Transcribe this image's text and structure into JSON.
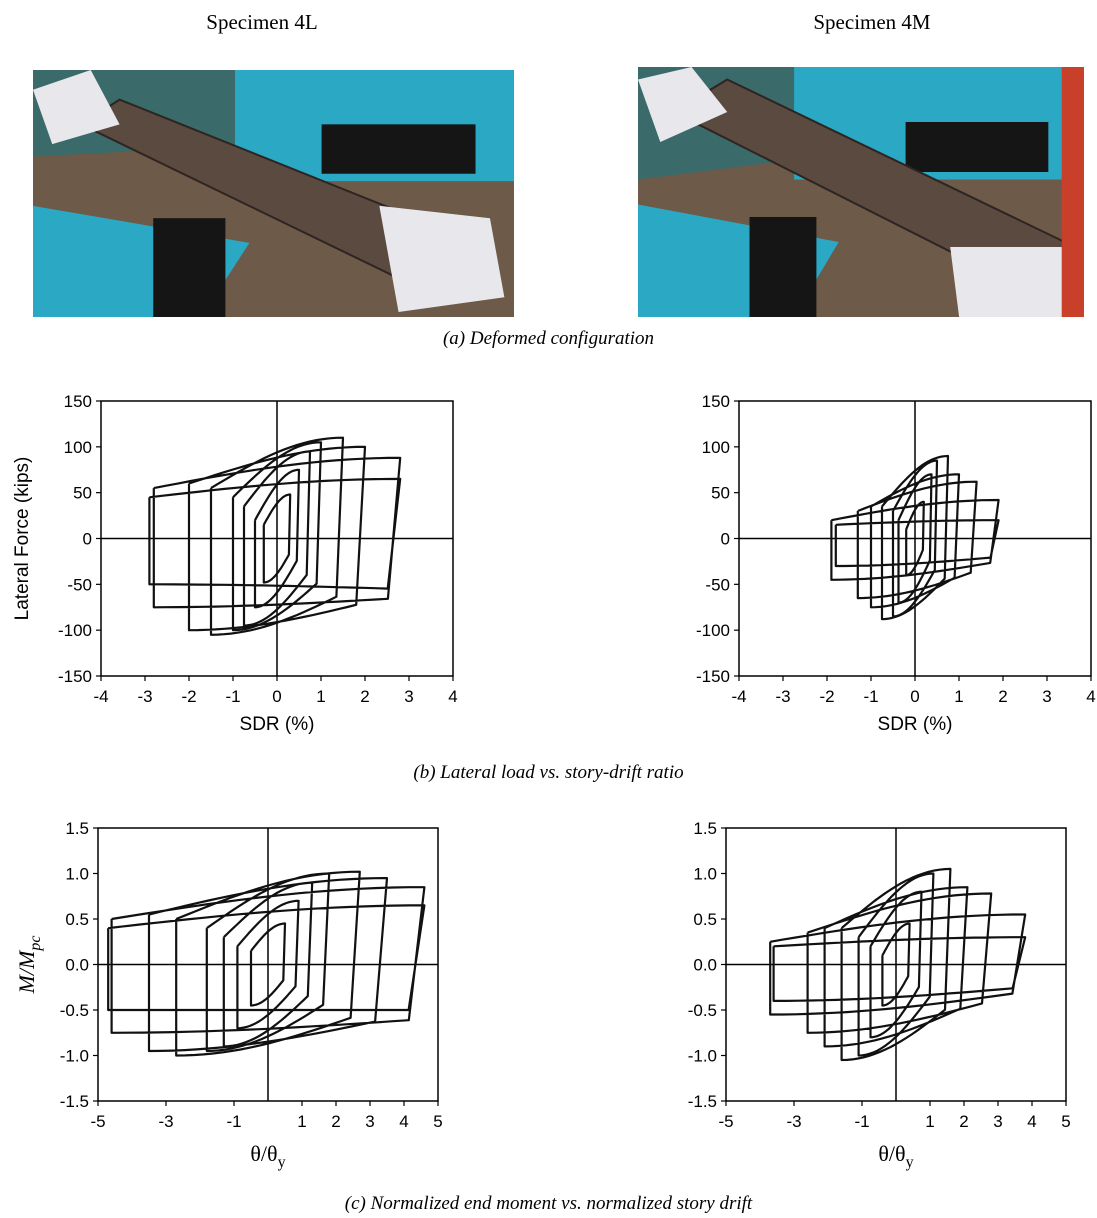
{
  "headers": {
    "left": "Specimen 4L",
    "right": "Specimen 4M"
  },
  "captions": {
    "a": "(a)  Deformed configuration",
    "b": "(b)  Lateral load vs. story-drift ratio",
    "c": "(c)  Normalized end moment vs. normalized story drift"
  },
  "photos": [
    {
      "specimen": "4L",
      "palette": {
        "machine": "#2aa8c4",
        "floor": "#6e5a48",
        "beam": "#5a4a40",
        "wrap": "#e8e8ec",
        "dark": "#151515"
      }
    },
    {
      "specimen": "4M",
      "palette": {
        "machine": "#2aa8c4",
        "floor": "#6e5a48",
        "beam": "#5a4a40",
        "wrap": "#e8e8ec",
        "dark": "#151515",
        "red": "#c8402a"
      }
    }
  ],
  "chart_data": [
    {
      "id": "b1",
      "type": "line",
      "specimen": "4L",
      "panel": "b",
      "xlabel": "SDR (%)",
      "ylabel": "Lateral Force (kips)",
      "xlim": [
        -4,
        4
      ],
      "ylim": [
        -150,
        150
      ],
      "xticks": [
        "-4",
        "-3",
        "-2",
        "-1",
        "0",
        "1",
        "2",
        "3",
        "4"
      ],
      "yticks": [
        "150",
        "100",
        "50",
        "0",
        "-50",
        "-100",
        "-150"
      ],
      "grid": false,
      "crosshair_at_zero": true,
      "loops": [
        {
          "xmax": 0.3,
          "xmin": -0.3,
          "ypos": 48,
          "yneg": -48,
          "yrev_pos": -15,
          "yrev_neg": 15
        },
        {
          "xmax": 0.5,
          "xmin": -0.5,
          "ypos": 75,
          "yneg": -75,
          "yrev_pos": -20,
          "yrev_neg": 20
        },
        {
          "xmax": 0.75,
          "xmin": -0.75,
          "ypos": 95,
          "yneg": -95,
          "yrev_pos": -35,
          "yrev_neg": 35
        },
        {
          "xmax": 1.0,
          "xmin": -1.0,
          "ypos": 105,
          "yneg": -100,
          "yrev_pos": -45,
          "yrev_neg": 45
        },
        {
          "xmax": 1.5,
          "xmin": -1.5,
          "ypos": 110,
          "yneg": -105,
          "yrev_pos": -60,
          "yrev_neg": 55
        },
        {
          "xmax": 2.0,
          "xmin": -2.0,
          "ypos": 100,
          "yneg": -100,
          "yrev_pos": -70,
          "yrev_neg": 60
        },
        {
          "xmax": 2.8,
          "xmin": -2.8,
          "ypos": 88,
          "yneg": -75,
          "yrev_pos": -65,
          "yrev_neg": 55
        },
        {
          "xmax": 2.8,
          "xmin": -2.9,
          "ypos": 65,
          "yneg": -50,
          "yrev_pos": -55,
          "yrev_neg": 45
        }
      ],
      "peaks": {
        "max": 110,
        "min": -120
      }
    },
    {
      "id": "b2",
      "type": "line",
      "specimen": "4M",
      "panel": "b",
      "xlabel": "SDR (%)",
      "ylabel": "",
      "xlim": [
        -4,
        4
      ],
      "ylim": [
        -150,
        150
      ],
      "xticks": [
        "-4",
        "-3",
        "-2",
        "-1",
        "0",
        "1",
        "2",
        "3",
        "4"
      ],
      "yticks": [
        "150",
        "100",
        "50",
        "0",
        "-50",
        "-100",
        "-150"
      ],
      "grid": false,
      "crosshair_at_zero": true,
      "loops": [
        {
          "xmax": 0.2,
          "xmin": -0.2,
          "ypos": 40,
          "yneg": -40,
          "yrev_pos": -10,
          "yrev_neg": 10
        },
        {
          "xmax": 0.375,
          "xmin": -0.375,
          "ypos": 70,
          "yneg": -70,
          "yrev_pos": -20,
          "yrev_neg": 20
        },
        {
          "xmax": 0.5,
          "xmin": -0.5,
          "ypos": 85,
          "yneg": -85,
          "yrev_pos": -30,
          "yrev_neg": 30
        },
        {
          "xmax": 0.75,
          "xmin": -0.75,
          "ypos": 90,
          "yneg": -88,
          "yrev_pos": -40,
          "yrev_neg": 35
        },
        {
          "xmax": 1.0,
          "xmin": -1.0,
          "ypos": 70,
          "yneg": -75,
          "yrev_pos": -40,
          "yrev_neg": 35
        },
        {
          "xmax": 1.4,
          "xmin": -1.3,
          "ypos": 62,
          "yneg": -65,
          "yrev_pos": -35,
          "yrev_neg": 30
        },
        {
          "xmax": 1.9,
          "xmin": -1.9,
          "ypos": 42,
          "yneg": -45,
          "yrev_pos": -25,
          "yrev_neg": 20
        },
        {
          "xmax": 1.9,
          "xmin": -1.8,
          "ypos": 20,
          "yneg": -30,
          "yrev_pos": -20,
          "yrev_neg": 15
        }
      ],
      "peaks": {
        "max": 95,
        "min": -90
      }
    },
    {
      "id": "c1",
      "type": "line",
      "specimen": "4L",
      "panel": "c",
      "xlabel": "θ/θy",
      "xlabel_main": "θ/θ",
      "xlabel_sub": "y",
      "ylabel": "M/Mpc",
      "ylabel_main": "M/M",
      "ylabel_sub": "pc",
      "xlim": [
        -5,
        5
      ],
      "ylim": [
        -1.5,
        1.5
      ],
      "xticks": [
        "-5",
        "-3",
        "-1",
        "1",
        "2",
        "3",
        "4",
        "5"
      ],
      "xtick_values": [
        -5,
        -3,
        -1,
        1,
        2,
        3,
        4,
        5
      ],
      "yticks": [
        "1.5",
        "1.0",
        "0.5",
        "0.0",
        "-0.5",
        "-1.0",
        "-1.5"
      ],
      "grid": false,
      "crosshair_at_zero": true,
      "loops": [
        {
          "xmax": 0.5,
          "xmin": -0.5,
          "ypos": 0.45,
          "yneg": -0.45,
          "yrev_pos": -0.15,
          "yrev_neg": 0.15
        },
        {
          "xmax": 0.9,
          "xmin": -0.9,
          "ypos": 0.7,
          "yneg": -0.7,
          "yrev_pos": -0.2,
          "yrev_neg": 0.2
        },
        {
          "xmax": 1.3,
          "xmin": -1.3,
          "ypos": 0.9,
          "yneg": -0.9,
          "yrev_pos": -0.3,
          "yrev_neg": 0.3
        },
        {
          "xmax": 1.8,
          "xmin": -1.8,
          "ypos": 1.0,
          "yneg": -0.95,
          "yrev_pos": -0.4,
          "yrev_neg": 0.4
        },
        {
          "xmax": 2.7,
          "xmin": -2.7,
          "ypos": 1.02,
          "yneg": -1.0,
          "yrev_pos": -0.55,
          "yrev_neg": 0.5
        },
        {
          "xmax": 3.5,
          "xmin": -3.5,
          "ypos": 0.95,
          "yneg": -0.95,
          "yrev_pos": -0.6,
          "yrev_neg": 0.55
        },
        {
          "xmax": 4.6,
          "xmin": -4.6,
          "ypos": 0.85,
          "yneg": -0.75,
          "yrev_pos": -0.6,
          "yrev_neg": 0.5
        },
        {
          "xmax": 4.6,
          "xmin": -4.7,
          "ypos": 0.65,
          "yneg": -0.5,
          "yrev_pos": -0.5,
          "yrev_neg": 0.4
        }
      ],
      "peaks": {
        "max": 1.05,
        "min": -1.1
      }
    },
    {
      "id": "c2",
      "type": "line",
      "specimen": "4M",
      "panel": "c",
      "xlabel": "θ/θy",
      "xlabel_main": "θ/θ",
      "xlabel_sub": "y",
      "ylabel": "",
      "xlim": [
        -5,
        5
      ],
      "ylim": [
        -1.5,
        1.5
      ],
      "xticks": [
        "-5",
        "-3",
        "-1",
        "1",
        "2",
        "3",
        "4",
        "5"
      ],
      "xtick_values": [
        -5,
        -3,
        -1,
        1,
        2,
        3,
        4,
        5
      ],
      "yticks": [
        "1.5",
        "1.0",
        "0.5",
        "0.0",
        "-0.5",
        "-1.0",
        "-1.5"
      ],
      "grid": false,
      "crosshair_at_zero": true,
      "loops": [
        {
          "xmax": 0.4,
          "xmin": -0.4,
          "ypos": 0.45,
          "yneg": -0.45,
          "yrev_pos": -0.1,
          "yrev_neg": 0.1
        },
        {
          "xmax": 0.75,
          "xmin": -0.75,
          "ypos": 0.8,
          "yneg": -0.8,
          "yrev_pos": -0.2,
          "yrev_neg": 0.2
        },
        {
          "xmax": 1.1,
          "xmin": -1.1,
          "ypos": 1.0,
          "yneg": -1.0,
          "yrev_pos": -0.3,
          "yrev_neg": 0.3
        },
        {
          "xmax": 1.6,
          "xmin": -1.6,
          "ypos": 1.05,
          "yneg": -1.05,
          "yrev_pos": -0.45,
          "yrev_neg": 0.4
        },
        {
          "xmax": 2.1,
          "xmin": -2.1,
          "ypos": 0.85,
          "yneg": -0.9,
          "yrev_pos": -0.45,
          "yrev_neg": 0.4
        },
        {
          "xmax": 2.8,
          "xmin": -2.6,
          "ypos": 0.78,
          "yneg": -0.75,
          "yrev_pos": -0.4,
          "yrev_neg": 0.35
        },
        {
          "xmax": 3.8,
          "xmin": -3.7,
          "ypos": 0.55,
          "yneg": -0.55,
          "yrev_pos": -0.3,
          "yrev_neg": 0.25
        },
        {
          "xmax": 3.8,
          "xmin": -3.6,
          "ypos": 0.3,
          "yneg": -0.4,
          "yrev_pos": -0.25,
          "yrev_neg": 0.2
        }
      ],
      "peaks": {
        "max": 1.1,
        "min": -1.05
      }
    }
  ]
}
